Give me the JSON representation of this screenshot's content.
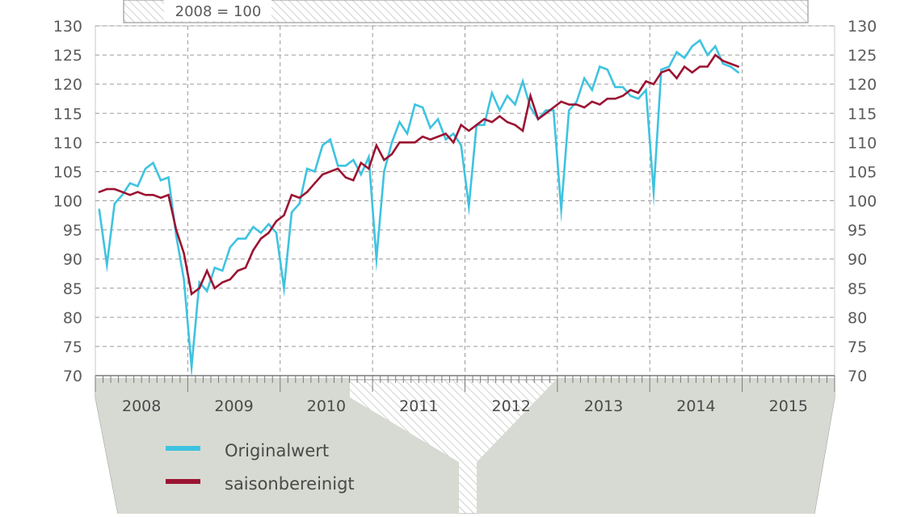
{
  "chart_data": {
    "type": "line",
    "subtitle": "2008 = 100",
    "y_axis": {
      "min": 70,
      "max": 130,
      "step": 5,
      "ticks": [
        70,
        75,
        80,
        85,
        90,
        95,
        100,
        105,
        110,
        115,
        120,
        125,
        130
      ],
      "sides": [
        "left",
        "right"
      ]
    },
    "x_axis": {
      "years": [
        "2008",
        "2009",
        "2010",
        "2011",
        "2012",
        "2013",
        "2014",
        "2015"
      ],
      "start": "2008-01",
      "months_per_year": 12
    },
    "grid": true,
    "legend": {
      "placement": "bottom-left",
      "items": [
        {
          "label": "Originalwert",
          "color": "#3ec3e0"
        },
        {
          "label": "saisonbereinigt",
          "color": "#9b1432"
        }
      ]
    },
    "series": [
      {
        "name": "Originalwert",
        "color": "#3ec3e0",
        "values": [
          98.5,
          89.0,
          99.5,
          101.0,
          103.0,
          102.5,
          105.5,
          106.5,
          103.5,
          104.0,
          94.0,
          86.5,
          71.5,
          86.0,
          84.5,
          88.5,
          88.0,
          92.0,
          93.5,
          93.5,
          95.5,
          94.5,
          96.0,
          94.5,
          85.0,
          98.0,
          99.5,
          105.5,
          105.0,
          109.5,
          110.5,
          106.0,
          106.0,
          107.0,
          104.5,
          107.5,
          90.0,
          105.0,
          110.0,
          113.5,
          111.5,
          116.5,
          116.0,
          112.5,
          114.0,
          110.5,
          111.5,
          109.5,
          99.0,
          113.0,
          113.0,
          118.5,
          115.5,
          118.0,
          116.5,
          120.5,
          116.0,
          114.0,
          115.5,
          115.5,
          98.5,
          115.5,
          117.0,
          121.0,
          119.0,
          123.0,
          122.5,
          119.5,
          119.5,
          118.0,
          117.5,
          119.0,
          101.5,
          122.5,
          123.0,
          125.5,
          124.5,
          126.5,
          127.5,
          125.0,
          126.5,
          123.5,
          123.0,
          122.0
        ]
      },
      {
        "name": "saisonbereinigt",
        "color": "#9b1432",
        "values": [
          101.5,
          102.0,
          102.0,
          101.5,
          101.0,
          101.5,
          101.0,
          101.0,
          100.5,
          101.0,
          95.0,
          91.0,
          84.0,
          85.0,
          88.0,
          85.0,
          86.0,
          86.5,
          88.0,
          88.5,
          91.5,
          93.5,
          94.5,
          96.5,
          97.5,
          101.0,
          100.5,
          101.5,
          103.0,
          104.5,
          105.0,
          105.5,
          104.0,
          103.5,
          106.5,
          105.5,
          109.5,
          107.0,
          108.0,
          110.0,
          110.0,
          110.0,
          111.0,
          110.5,
          111.0,
          111.5,
          110.0,
          113.0,
          112.0,
          113.0,
          114.0,
          113.5,
          114.5,
          113.5,
          113.0,
          112.0,
          118.0,
          114.0,
          115.0,
          116.0,
          117.0,
          116.5,
          116.5,
          116.0,
          117.0,
          116.5,
          117.5,
          117.5,
          118.0,
          119.0,
          118.5,
          120.5,
          120.0,
          122.0,
          122.5,
          121.0,
          123.0,
          122.0,
          123.0,
          123.0,
          125.0,
          124.0,
          123.5,
          123.0
        ]
      }
    ]
  }
}
